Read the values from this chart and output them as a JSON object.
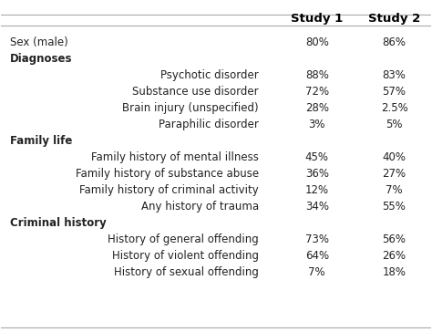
{
  "rows": [
    {
      "label": "",
      "indent": false,
      "bold": false,
      "study1": "",
      "study2": "",
      "header": true
    },
    {
      "label": "Sex (male)",
      "indent": false,
      "bold": false,
      "study1": "80%",
      "study2": "86%"
    },
    {
      "label": "Diagnoses",
      "indent": false,
      "bold": true,
      "study1": "",
      "study2": ""
    },
    {
      "label": "Psychotic disorder",
      "indent": true,
      "bold": false,
      "study1": "88%",
      "study2": "83%"
    },
    {
      "label": "Substance use disorder",
      "indent": true,
      "bold": false,
      "study1": "72%",
      "study2": "57%"
    },
    {
      "label": "Brain injury (unspecified)",
      "indent": true,
      "bold": false,
      "study1": "28%",
      "study2": "2.5%"
    },
    {
      "label": "Paraphilic disorder",
      "indent": true,
      "bold": false,
      "study1": "3%",
      "study2": "5%"
    },
    {
      "label": "Family life",
      "indent": false,
      "bold": true,
      "study1": "",
      "study2": ""
    },
    {
      "label": "Family history of mental illness",
      "indent": true,
      "bold": false,
      "study1": "45%",
      "study2": "40%"
    },
    {
      "label": "Family history of substance abuse",
      "indent": true,
      "bold": false,
      "study1": "36%",
      "study2": "27%"
    },
    {
      "label": "Family history of criminal activity",
      "indent": true,
      "bold": false,
      "study1": "12%",
      "study2": "7%"
    },
    {
      "label": "Any history of trauma",
      "indent": true,
      "bold": false,
      "study1": "34%",
      "study2": "55%"
    },
    {
      "label": "Criminal history",
      "indent": false,
      "bold": true,
      "study1": "",
      "study2": ""
    },
    {
      "label": "History of general offending",
      "indent": true,
      "bold": false,
      "study1": "73%",
      "study2": "56%"
    },
    {
      "label": "History of violent offending",
      "indent": true,
      "bold": false,
      "study1": "64%",
      "study2": "26%"
    },
    {
      "label": "History of sexual offending",
      "indent": true,
      "bold": false,
      "study1": "7%",
      "study2": "18%"
    }
  ],
  "col_header_study1": "Study 1",
  "col_header_study2": "Study 2",
  "background_color": "#ffffff",
  "text_color": "#222222",
  "header_color": "#000000",
  "line_color": "#aaaaaa",
  "font_size": 8.5,
  "header_font_size": 9.5
}
